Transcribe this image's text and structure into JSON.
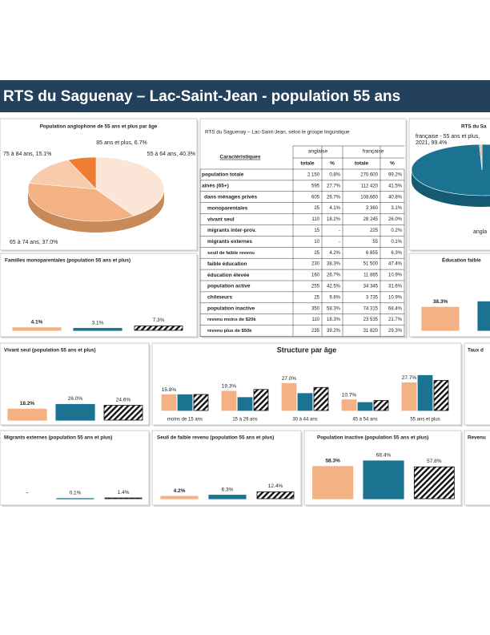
{
  "title": "RTS du Saguenay – Lac-Saint-Jean - population 55 ans",
  "chart_data": [
    {
      "type": "pie",
      "title": "Population anglophone de 55 ans et plus par âge",
      "values": [
        40.3,
        37.0,
        15.1,
        6.7
      ],
      "value_labels": [
        "55 à 64 ans, 40.3%",
        "65 à 74 ans, 37.0%",
        "75 à 84 ans, 15.1%",
        "85 ans et plus, 6.7%"
      ],
      "colors": [
        "#fbe5d6",
        "#f4b183",
        "#f8cbad",
        "#ed7d31"
      ]
    },
    {
      "type": "pie",
      "title": "RTS du Sa",
      "values": [
        99.4,
        0.6
      ],
      "value_labels": [
        "française - 55 ans et plus, 2021, 99.4%",
        "angla"
      ],
      "colors": [
        "#1b7391",
        "#f4b183"
      ]
    },
    {
      "type": "bar",
      "title": "Familles monoparentales (population 55 ans et plus)",
      "values": [
        4.1,
        3.1,
        7.3
      ],
      "value_labels": [
        "4.1%",
        "3.1%",
        "7.3%"
      ],
      "colors": [
        "#f4b183",
        "#1b7391",
        "hatch"
      ],
      "ylim": [
        0,
        80
      ]
    },
    {
      "type": "bar",
      "title": "Éducation faible",
      "values": [
        38.3,
        47.4
      ],
      "value_labels": [
        "38.3%",
        null
      ],
      "colors": [
        "#f4b183",
        "#1b7391"
      ],
      "ylim": [
        0,
        80
      ]
    },
    {
      "type": "bar",
      "title": "Vivant seul (population 55 ans et plus)",
      "values": [
        18.2,
        26.0,
        24.6
      ],
      "value_labels": [
        "18.2%",
        "26.0%",
        "24.6%"
      ],
      "colors": [
        "#f4b183",
        "#1b7391",
        "hatch"
      ],
      "ylim": [
        0,
        80
      ]
    },
    {
      "type": "grouped-bar",
      "title": "Structure par âge",
      "categories": [
        "moins de 15 ans",
        "15 à 29 ans",
        "30 à 44 ans",
        "45 à 54 ans",
        "55 ans et plus"
      ],
      "series": [
        {
          "color": "#f4b183",
          "values": [
            15.8,
            19.3,
            27.0,
            10.7,
            27.7
          ],
          "value_labels": [
            "15.8%",
            "19.3%",
            "27.0%",
            "10.7%",
            "27.7%"
          ]
        },
        {
          "color": "#1b7391",
          "values": [
            15.8,
            13.0,
            17.0,
            8.0,
            35.0
          ]
        },
        {
          "color": "hatch",
          "values": [
            16.0,
            21.0,
            23.0,
            10.0,
            30.0
          ]
        }
      ],
      "ylim": [
        0,
        40
      ]
    },
    {
      "type": "bar",
      "title": "Migrants externes (population 55 ans et plus)",
      "values": [
        0,
        0.1,
        1.4
      ],
      "value_labels": [
        "-",
        "0.1%",
        "1.4%"
      ],
      "colors": [
        "#f4b183",
        "#1b7391",
        "hatch"
      ],
      "ylim": [
        0,
        80
      ]
    },
    {
      "type": "bar",
      "title": "Seuil de faible revenu (population 55 ans et plus)",
      "values": [
        4.2,
        6.3,
        12.4
      ],
      "value_labels": [
        "4.2%",
        "6.3%",
        "12.4%"
      ],
      "colors": [
        "#f4b183",
        "#1b7391",
        "hatch"
      ],
      "ylim": [
        0,
        80
      ]
    },
    {
      "type": "bar",
      "title": "Population inactive (population 55 ans et plus)",
      "values": [
        58.3,
        68.4,
        57.8
      ],
      "value_labels": [
        "58.3%",
        "68.4%",
        "57.8%"
      ],
      "colors": [
        "#f4b183",
        "#1b7391",
        "hatch"
      ],
      "ylim": [
        0,
        80
      ]
    }
  ],
  "cropped_panels": [
    "Taux d",
    "Revenu"
  ],
  "table": {
    "title": "RTS du Saguenay – Lac-Saint-Jean, selon le groupe linguistique",
    "columns": [
      "Caractéristiques",
      "anglaise",
      "française"
    ],
    "subcolumns": [
      "totale",
      "%",
      "totale",
      "%"
    ],
    "rows": [
      [
        "population totale",
        "2 150",
        "0.8%",
        "270 600",
        "99.2%"
      ],
      [
        "aînés (65+)",
        "595",
        "27.7%",
        "112 420",
        "41.5%"
      ],
      [
        "dans ménages privés",
        "605",
        "26.7%",
        "108,660",
        "40.8%"
      ],
      [
        "monoparentales",
        "25",
        "4.1%",
        "3 360",
        "3.1%"
      ],
      [
        "vivant seul",
        "110",
        "18.2%",
        "28 245",
        "26.0%"
      ],
      [
        "migrants inter-prov.",
        "15",
        "-",
        "225",
        "0.2%"
      ],
      [
        "migrants externes",
        "10",
        "-",
        "55",
        "0.1%"
      ],
      [
        "seuil de faible revenu",
        "25",
        "4.2%",
        "6 855",
        "6.3%"
      ],
      [
        "faible éducation",
        "230",
        "38.3%",
        "51 500",
        "47.4%"
      ],
      [
        "éducation élevée",
        "160",
        "26.7%",
        "11 865",
        "10.9%"
      ],
      [
        "population active",
        "255",
        "42.5%",
        "34 345",
        "31.6%"
      ],
      [
        "chômeurs",
        "25",
        "9.8%",
        "3 735",
        "10.9%"
      ],
      [
        "population inactive",
        "350",
        "58.3%",
        "74 315",
        "68.4%"
      ],
      [
        "revenu moins de $20k",
        "110",
        "18.3%",
        "23 535",
        "21.7%"
      ],
      [
        "revenu plus de $50k",
        "235",
        "39.2%",
        "31 820",
        "29.3%"
      ]
    ]
  }
}
